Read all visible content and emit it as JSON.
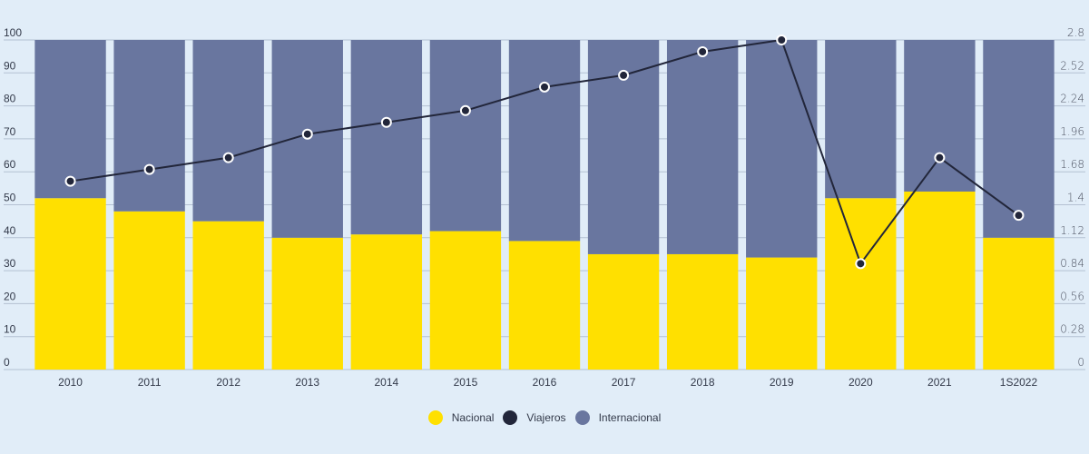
{
  "chart_data": {
    "type": "bar",
    "stacked": true,
    "categories": [
      "2010",
      "2011",
      "2012",
      "2013",
      "2014",
      "2015",
      "2016",
      "2017",
      "2018",
      "2019",
      "2020",
      "2021",
      "1S2022"
    ],
    "series": [
      {
        "name": "Nacional",
        "type": "bar",
        "axis": "left",
        "color": "#ffe000",
        "values": [
          52,
          48,
          45,
          40,
          41,
          42,
          39,
          35,
          35,
          34,
          52,
          54,
          40
        ]
      },
      {
        "name": "Internacional",
        "type": "bar",
        "axis": "left",
        "color": "#69769f",
        "values": [
          48,
          52,
          55,
          60,
          59,
          58,
          61,
          65,
          65,
          66,
          48,
          46,
          60
        ]
      },
      {
        "name": "Viajeros",
        "type": "line",
        "axis": "right",
        "color": "#22263a",
        "values": [
          1.6,
          1.7,
          1.8,
          2.0,
          2.1,
          2.2,
          2.4,
          2.5,
          2.7,
          2.8,
          0.9,
          1.8,
          1.31
        ]
      }
    ],
    "y_left": {
      "ylim": [
        0,
        100
      ],
      "ticks": [
        "0",
        "10",
        "20",
        "30",
        "40",
        "50",
        "60",
        "70",
        "80",
        "90",
        "100"
      ]
    },
    "y_right": {
      "ylim": [
        0,
        2.8
      ],
      "ticks": [
        "0",
        "0.28",
        "0.56",
        "0.84",
        "1.12",
        "1.4",
        "1.68",
        "1.96",
        "2.24",
        "2.52",
        "2.8"
      ]
    },
    "title": "",
    "xlabel": "",
    "ylabel": "",
    "grid": true,
    "legend_position": "bottom-center",
    "legend": [
      {
        "label": "Nacional",
        "color": "#ffe000"
      },
      {
        "label": "Viajeros",
        "color": "#22263a"
      },
      {
        "label": "Internacional",
        "color": "#69769f"
      }
    ]
  }
}
